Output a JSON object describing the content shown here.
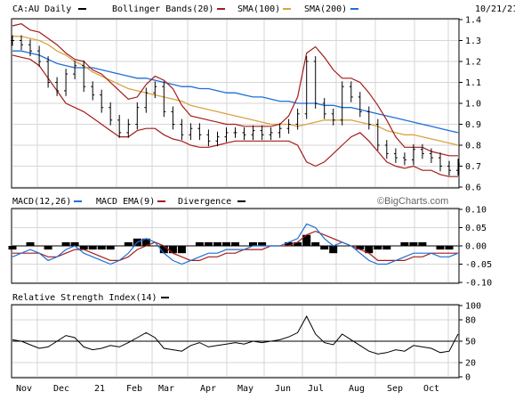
{
  "header": {
    "symbol": "CA:AU Daily",
    "bb_label": "Bollinger Bands(20)",
    "sma100_label": "SMA(100)",
    "sma200_label": "SMA(200)",
    "date": "10/21/21"
  },
  "colors": {
    "price": "#000000",
    "bollinger": "#a51c1c",
    "sma100": "#d9a441",
    "sma200": "#1f6fd6",
    "macd": "#1f6fd6",
    "macd_ema": "#a51c1c",
    "divergence": "#000000",
    "grid": "#d6d6d6",
    "border": "#000000"
  },
  "macd_header": {
    "macd_label": "MACD(12,26)",
    "ema_label": "MACD EMA(9)",
    "div_label": "Divergence"
  },
  "rsi_header": {
    "rsi_label": "Relative Strength Index(14)"
  },
  "watermark": "©BigCharts.com",
  "chart_data": [
    {
      "type": "ohlc",
      "panel": "price",
      "ylim": [
        0.6,
        1.4
      ],
      "y_ticks": [
        "1.4",
        "1.3",
        "1.2",
        "1.1",
        "1.0",
        "0.9",
        "0.8",
        "0.7",
        "0.6"
      ],
      "x_ticks": [
        "Nov",
        "Dec",
        "21",
        "Feb",
        "Mar",
        "Apr",
        "May",
        "Jun",
        "Jul",
        "Aug",
        "Sep",
        "Oct"
      ],
      "grid": true,
      "series": [
        {
          "name": "CA:AU Daily",
          "values": [
            1.3,
            1.28,
            1.25,
            1.2,
            1.1,
            1.06,
            1.14,
            1.18,
            1.08,
            1.04,
            0.98,
            0.92,
            0.86,
            0.9,
            0.98,
            1.05,
            1.08,
            0.96,
            0.9,
            0.85,
            0.88,
            0.85,
            0.82,
            0.84,
            0.86,
            0.86,
            0.85,
            0.87,
            0.85,
            0.86,
            0.88,
            0.9,
            0.95,
            1.2,
            1.0,
            0.95,
            0.92,
            1.08,
            1.03,
            0.96,
            0.9,
            0.8,
            0.76,
            0.74,
            0.73,
            0.78,
            0.76,
            0.74,
            0.7,
            0.68,
            0.71
          ]
        },
        {
          "name": "Bollinger Upper",
          "values": [
            1.37,
            1.38,
            1.35,
            1.34,
            1.31,
            1.28,
            1.24,
            1.21,
            1.2,
            1.16,
            1.14,
            1.1,
            1.06,
            1.02,
            1.03,
            1.09,
            1.13,
            1.11,
            1.07,
            0.99,
            0.94,
            0.93,
            0.92,
            0.91,
            0.9,
            0.9,
            0.89,
            0.89,
            0.89,
            0.89,
            0.9,
            0.94,
            1.03,
            1.24,
            1.27,
            1.22,
            1.16,
            1.12,
            1.12,
            1.1,
            1.05,
            0.99,
            0.92,
            0.84,
            0.79,
            0.79,
            0.79,
            0.77,
            0.76,
            0.75,
            0.75
          ]
        },
        {
          "name": "Bollinger Lower",
          "values": [
            1.23,
            1.22,
            1.21,
            1.18,
            1.12,
            1.06,
            1.0,
            0.98,
            0.96,
            0.93,
            0.9,
            0.87,
            0.84,
            0.84,
            0.87,
            0.88,
            0.88,
            0.85,
            0.83,
            0.82,
            0.8,
            0.79,
            0.79,
            0.8,
            0.81,
            0.82,
            0.82,
            0.82,
            0.82,
            0.82,
            0.82,
            0.82,
            0.8,
            0.72,
            0.7,
            0.72,
            0.76,
            0.8,
            0.84,
            0.86,
            0.82,
            0.77,
            0.72,
            0.7,
            0.69,
            0.7,
            0.68,
            0.68,
            0.66,
            0.65,
            0.65
          ]
        },
        {
          "name": "SMA(100)",
          "values": [
            1.32,
            1.32,
            1.31,
            1.3,
            1.28,
            1.25,
            1.23,
            1.2,
            1.18,
            1.15,
            1.13,
            1.11,
            1.09,
            1.07,
            1.06,
            1.05,
            1.04,
            1.03,
            1.02,
            1.01,
            0.99,
            0.98,
            0.97,
            0.96,
            0.95,
            0.94,
            0.93,
            0.92,
            0.91,
            0.9,
            0.9,
            0.9,
            0.89,
            0.9,
            0.91,
            0.92,
            0.92,
            0.92,
            0.92,
            0.91,
            0.9,
            0.89,
            0.87,
            0.86,
            0.85,
            0.85,
            0.84,
            0.83,
            0.82,
            0.81,
            0.8
          ]
        },
        {
          "name": "SMA(200)",
          "values": [
            1.25,
            1.25,
            1.24,
            1.23,
            1.21,
            1.19,
            1.18,
            1.17,
            1.17,
            1.17,
            1.16,
            1.15,
            1.14,
            1.13,
            1.12,
            1.12,
            1.11,
            1.1,
            1.09,
            1.08,
            1.08,
            1.07,
            1.07,
            1.06,
            1.05,
            1.05,
            1.04,
            1.03,
            1.03,
            1.02,
            1.01,
            1.01,
            1.0,
            1.0,
            1.0,
            0.99,
            0.99,
            0.98,
            0.98,
            0.97,
            0.96,
            0.95,
            0.94,
            0.93,
            0.92,
            0.91,
            0.9,
            0.89,
            0.88,
            0.87,
            0.86
          ]
        }
      ]
    },
    {
      "type": "line",
      "panel": "macd",
      "ylim": [
        -0.1,
        0.1
      ],
      "y_ticks": [
        "0.10",
        "0.05",
        "0.00",
        "-0.05",
        "-0.10"
      ],
      "grid": true,
      "series": [
        {
          "name": "MACD(12,26)",
          "values": [
            -0.03,
            -0.02,
            -0.01,
            -0.02,
            -0.04,
            -0.03,
            -0.01,
            0.0,
            -0.02,
            -0.03,
            -0.04,
            -0.05,
            -0.04,
            -0.02,
            0.01,
            0.02,
            0.01,
            -0.02,
            -0.04,
            -0.05,
            -0.04,
            -0.03,
            -0.02,
            -0.02,
            -0.01,
            -0.01,
            -0.01,
            0.0,
            0.0,
            0.0,
            0.0,
            0.01,
            0.02,
            0.06,
            0.05,
            0.02,
            0.0,
            0.01,
            0.0,
            -0.02,
            -0.04,
            -0.05,
            -0.05,
            -0.04,
            -0.03,
            -0.02,
            -0.02,
            -0.02,
            -0.03,
            -0.03,
            -0.02
          ]
        },
        {
          "name": "MACD EMA(9)",
          "values": [
            -0.02,
            -0.02,
            -0.02,
            -0.02,
            -0.03,
            -0.03,
            -0.02,
            -0.01,
            -0.01,
            -0.02,
            -0.03,
            -0.04,
            -0.04,
            -0.03,
            -0.01,
            0.0,
            0.01,
            0.0,
            -0.02,
            -0.03,
            -0.04,
            -0.04,
            -0.03,
            -0.03,
            -0.02,
            -0.02,
            -0.01,
            -0.01,
            -0.01,
            0.0,
            0.0,
            0.0,
            0.01,
            0.03,
            0.04,
            0.03,
            0.02,
            0.01,
            0.0,
            -0.01,
            -0.02,
            -0.04,
            -0.04,
            -0.04,
            -0.04,
            -0.03,
            -0.03,
            -0.02,
            -0.02,
            -0.02,
            -0.02
          ]
        },
        {
          "name": "Divergence",
          "values": [
            -0.01,
            0.0,
            0.01,
            0.0,
            -0.01,
            0.0,
            0.01,
            0.01,
            -0.01,
            -0.01,
            -0.01,
            -0.01,
            0.0,
            0.01,
            0.02,
            0.02,
            0.0,
            -0.02,
            -0.02,
            -0.02,
            0.0,
            0.01,
            0.01,
            0.01,
            0.01,
            0.01,
            0.0,
            0.01,
            0.01,
            0.0,
            0.0,
            0.01,
            0.01,
            0.03,
            0.01,
            -0.01,
            -0.02,
            0.0,
            0.0,
            -0.01,
            -0.02,
            -0.01,
            -0.01,
            0.0,
            0.01,
            0.01,
            0.01,
            0.0,
            -0.01,
            -0.01,
            0.0
          ]
        }
      ]
    },
    {
      "type": "line",
      "panel": "rsi",
      "ylim": [
        0,
        100
      ],
      "y_ticks": [
        "100",
        "80",
        "50",
        "20",
        "0"
      ],
      "grid": true,
      "series": [
        {
          "name": "Relative Strength Index(14)",
          "values": [
            52,
            50,
            45,
            40,
            42,
            50,
            58,
            55,
            42,
            38,
            40,
            44,
            42,
            48,
            55,
            62,
            55,
            40,
            38,
            36,
            44,
            48,
            42,
            44,
            46,
            48,
            46,
            50,
            48,
            50,
            52,
            56,
            62,
            85,
            60,
            48,
            45,
            60,
            52,
            44,
            36,
            32,
            34,
            38,
            36,
            44,
            42,
            40,
            34,
            36,
            60
          ]
        }
      ]
    }
  ]
}
